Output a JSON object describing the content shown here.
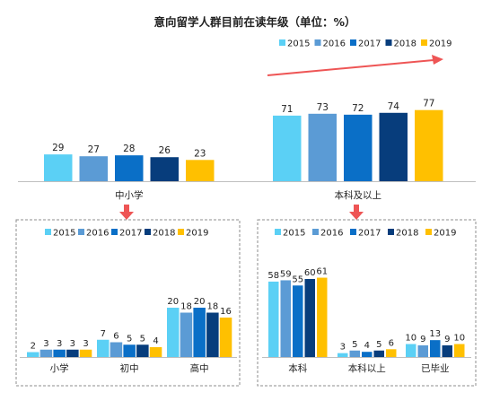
{
  "title": "意向留学人群目前在读年级（单位：%）",
  "colors": [
    "#5bd0f5",
    "#5b9bd5",
    "#0a6fc7",
    "#073d7c",
    "#ffc000"
  ],
  "arrow_color": "#ee5555",
  "chart_data": [
    {
      "type": "bar",
      "panel": "top",
      "legend": [
        "2015",
        "2016",
        "2017",
        "2018",
        "2019"
      ],
      "categories": [
        "中小学",
        "本科及以上"
      ],
      "series": [
        {
          "name": "2015",
          "values": [
            29,
            71
          ]
        },
        {
          "name": "2016",
          "values": [
            27,
            73
          ]
        },
        {
          "name": "2017",
          "values": [
            28,
            72
          ]
        },
        {
          "name": "2018",
          "values": [
            26,
            74
          ]
        },
        {
          "name": "2019",
          "values": [
            23,
            77
          ]
        }
      ],
      "legend_placement": "top-right"
    },
    {
      "type": "bar",
      "panel": "bottom-left",
      "legend": [
        "2015",
        "2016",
        "2017",
        "2018",
        "2019"
      ],
      "categories": [
        "小学",
        "初中",
        "高中"
      ],
      "series": [
        {
          "name": "2015",
          "values": [
            2,
            7,
            20
          ]
        },
        {
          "name": "2016",
          "values": [
            3,
            6,
            18
          ]
        },
        {
          "name": "2017",
          "values": [
            3,
            5,
            20
          ]
        },
        {
          "name": "2018",
          "values": [
            3,
            5,
            18
          ]
        },
        {
          "name": "2019",
          "values": [
            3,
            4,
            16
          ]
        }
      ],
      "legend_placement": "top"
    },
    {
      "type": "bar",
      "panel": "bottom-right",
      "legend": [
        "2015",
        "2016",
        "2017",
        "2018",
        "2019"
      ],
      "categories": [
        "本科",
        "本科以上",
        "已毕业"
      ],
      "series": [
        {
          "name": "2015",
          "values": [
            58,
            3,
            10
          ]
        },
        {
          "name": "2016",
          "values": [
            59,
            5,
            9
          ]
        },
        {
          "name": "2017",
          "values": [
            55,
            4,
            13
          ]
        },
        {
          "name": "2018",
          "values": [
            60,
            5,
            9
          ]
        },
        {
          "name": "2019",
          "values": [
            61,
            6,
            10
          ]
        }
      ],
      "legend_placement": "top"
    }
  ]
}
